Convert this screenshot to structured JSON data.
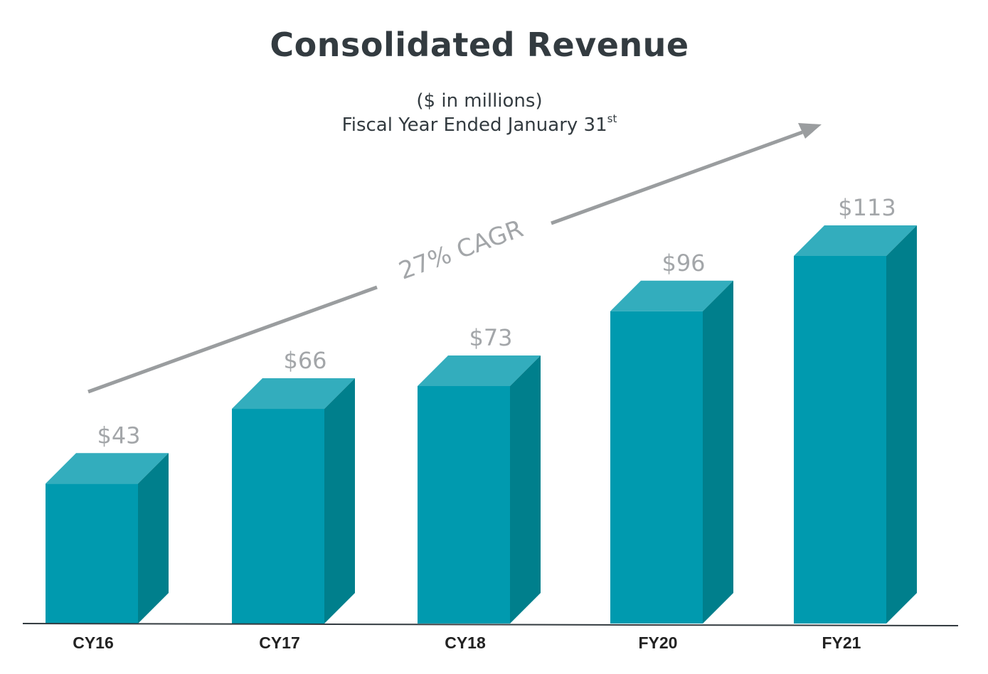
{
  "chart_data": {
    "type": "bar",
    "title": "Consolidated Revenue",
    "subtitle_line1": "($ in millions)",
    "subtitle_line2": "Fiscal Year Ended January 31",
    "subtitle_sup": "st",
    "categories": [
      "CY16",
      "CY17",
      "CY18",
      "FY20",
      "FY21"
    ],
    "values": [
      43,
      66,
      73,
      96,
      113
    ],
    "value_labels": [
      "$43",
      "$66",
      "$73",
      "$96",
      "$113"
    ],
    "annotation": "27% CAGR",
    "ylim": [
      0,
      113
    ],
    "grid": false,
    "colors": {
      "bar_front": "#009aaf",
      "bar_top": "#33adbd",
      "bar_side": "#007f8c",
      "arrow": "#9a9d9f",
      "label": "#a3a6a9",
      "title": "#333b40"
    }
  }
}
